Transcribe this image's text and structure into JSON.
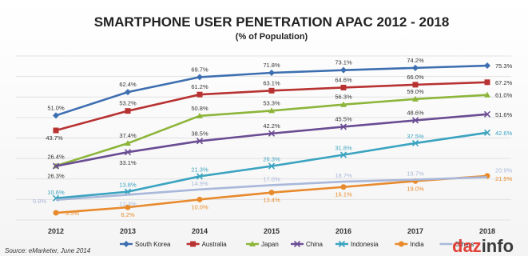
{
  "chart_data": {
    "type": "line",
    "title": "SMARTPHONE USER PENETRATION APAC 2012 - 2018",
    "subtitle": "(% of Population)",
    "xlabel": "",
    "ylabel": "",
    "ylim": [
      0,
      80
    ],
    "grid": true,
    "legend_position": "bottom",
    "x": [
      "2012",
      "2013",
      "2014",
      "2015",
      "2016",
      "2017",
      "2018"
    ],
    "series": [
      {
        "name": "South Korea",
        "color": "#3d6fb0",
        "marker": "diamond",
        "values": [
          51.0,
          62.4,
          69.7,
          71.8,
          73.1,
          74.2,
          75.3
        ],
        "labels": [
          "51.0%",
          "62.4%",
          "69.7%",
          "71.8%",
          "73.1%",
          "74.2%",
          "75.3%"
        ]
      },
      {
        "name": "Australia",
        "color": "#b83232",
        "marker": "square",
        "values": [
          43.7,
          53.2,
          61.2,
          63.1,
          64.6,
          66.0,
          67.2
        ],
        "labels": [
          "43.7%",
          "53.2%",
          "61.2%",
          "63.1%",
          "64.6%",
          "66.0%",
          "67.2%"
        ]
      },
      {
        "name": "Japan",
        "color": "#8cb53a",
        "marker": "triangle",
        "values": [
          26.4,
          37.4,
          50.8,
          53.3,
          56.3,
          59.0,
          61.0
        ],
        "labels": [
          "26.4%",
          "37.4%",
          "50.8%",
          "53.3%",
          "56.3%",
          "59.0%",
          "61.0%"
        ]
      },
      {
        "name": "China",
        "color": "#6a4c93",
        "marker": "x",
        "values": [
          26.3,
          33.1,
          38.5,
          42.2,
          45.5,
          48.6,
          51.6
        ],
        "labels": [
          "26.3%",
          "33.1%",
          "38.5%",
          "42.2%",
          "45.5%",
          "48.6%",
          "51.6%"
        ]
      },
      {
        "name": "Indonesia",
        "color": "#3aa3c0",
        "marker": "x",
        "values": [
          10.6,
          13.8,
          21.3,
          26.3,
          31.8,
          37.5,
          42.6
        ],
        "labels": [
          "10.6%",
          "13.8%",
          "21.3%",
          "26.3%",
          "31.8%",
          "37.5%",
          "42.6%"
        ]
      },
      {
        "name": "India",
        "color": "#e88a2c",
        "marker": "circle",
        "values": [
          3.5,
          6.2,
          10.0,
          13.4,
          16.1,
          19.0,
          21.5
        ],
        "labels": [
          "3.5%",
          "6.2%",
          "10.0%",
          "13.4%",
          "16.1%",
          "19.0%",
          "21.5%"
        ]
      },
      {
        "name": "Others",
        "color": "#a9b8da",
        "marker": "none",
        "values": [
          9.8,
          12.3,
          14.9,
          17.0,
          18.7,
          19.7,
          20.9
        ],
        "labels": [
          "9.8%",
          "12.3%",
          "14.9%",
          "17.0%",
          "18.7%",
          "19.7%",
          "20.9%"
        ]
      }
    ]
  },
  "source": "Source: eMarketer, June 2014",
  "brand": {
    "part1": "daz",
    "part2": "info",
    "color1": "#e0433a",
    "color2": "#3a3a3a"
  }
}
